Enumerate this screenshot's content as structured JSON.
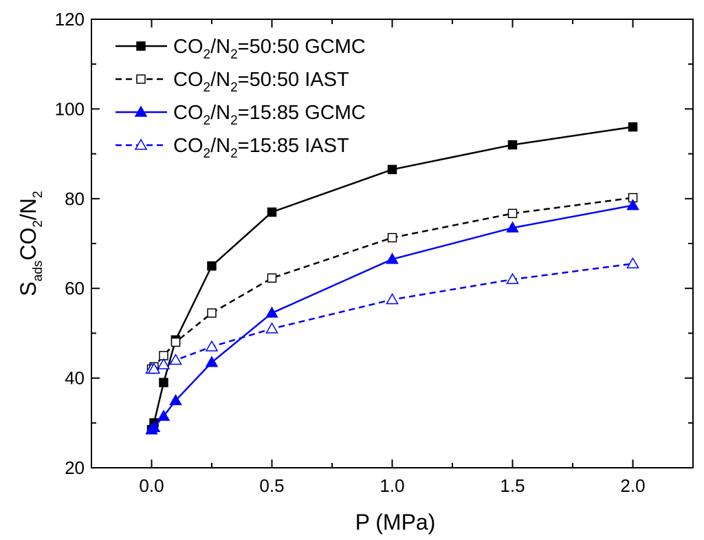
{
  "chart_data": {
    "type": "line",
    "title": "",
    "xlabel": "P (MPa)",
    "ylabel": {
      "main": "S",
      "sub1": "ads",
      "mid": "CO",
      "sub2": "2",
      "end": "/N",
      "sub3": "2"
    },
    "xlim": [
      -0.25,
      2.25
    ],
    "ylim": [
      20,
      120
    ],
    "xticks": [
      0.0,
      0.5,
      1.0,
      1.5,
      2.0
    ],
    "xtick_labels": [
      "0.0",
      "0.5",
      "1.0",
      "1.5",
      "2.0"
    ],
    "yticks": [
      20,
      40,
      60,
      80,
      100,
      120
    ],
    "ytick_labels": [
      "20",
      "40",
      "60",
      "80",
      "100",
      "120"
    ],
    "grid": false,
    "legend_position": "top-left",
    "series": [
      {
        "name": "CO2/N2=50:50 GCMC",
        "legend": {
          "a": "CO",
          "s1": "2",
          "b": "/N",
          "s2": "2",
          "c": "=50:50  GCMC"
        },
        "color": "#000000",
        "line_style": "solid",
        "marker": "filled-square",
        "x": [
          0.0,
          0.01,
          0.05,
          0.1,
          0.25,
          0.5,
          1.0,
          1.5,
          2.0
        ],
        "values": [
          28.5,
          30.0,
          39.0,
          48.5,
          65.0,
          77.0,
          86.5,
          92.0,
          96.0
        ]
      },
      {
        "name": "CO2/N2=50:50 IAST",
        "legend": {
          "a": "CO",
          "s1": "2",
          "b": "/N",
          "s2": "2",
          "c": "=50:50  IAST"
        },
        "color": "#000000",
        "line_style": "dashed",
        "marker": "open-square",
        "x": [
          0.0,
          0.01,
          0.05,
          0.1,
          0.25,
          0.5,
          1.0,
          1.5,
          2.0
        ],
        "values": [
          42.0,
          42.5,
          45.0,
          48.0,
          54.5,
          62.3,
          71.3,
          76.7,
          80.2
        ]
      },
      {
        "name": "CO2/N2=15:85 GCMC",
        "legend": {
          "a": "CO",
          "s1": "2",
          "b": "/N",
          "s2": "2",
          "c": "=15:85  GCMC"
        },
        "color": "#0000ff",
        "line_style": "solid",
        "marker": "filled-triangle",
        "x": [
          0.0,
          0.01,
          0.05,
          0.1,
          0.25,
          0.5,
          1.0,
          1.5,
          2.0
        ],
        "values": [
          28.5,
          29.0,
          31.5,
          35.0,
          43.5,
          54.5,
          66.5,
          73.5,
          78.5
        ]
      },
      {
        "name": "CO2/N2=15:85 IAST",
        "legend": {
          "a": "CO",
          "s1": "2",
          "b": "/N",
          "s2": "2",
          "c": "=15:85  IAST"
        },
        "color": "#0000ff",
        "line_style": "dashed",
        "marker": "open-triangle",
        "x": [
          0.0,
          0.01,
          0.05,
          0.1,
          0.25,
          0.5,
          1.0,
          1.5,
          2.0
        ],
        "values": [
          42.0,
          42.0,
          43.0,
          44.0,
          47.0,
          51.0,
          57.5,
          62.0,
          65.5
        ]
      }
    ]
  }
}
